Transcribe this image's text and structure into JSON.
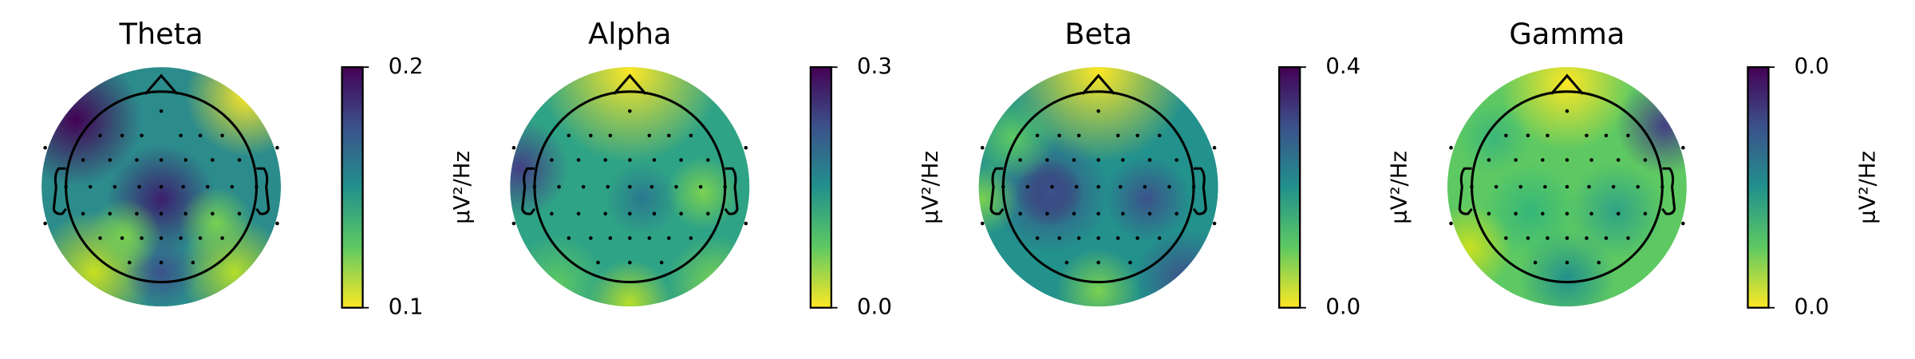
{
  "chart_data": [
    {
      "type": "topomap",
      "title": "Theta",
      "colorbar_label": "µV²/Hz",
      "clim": [
        0.1,
        0.2
      ],
      "cticks": [
        0.2,
        0.1
      ]
    },
    {
      "type": "topomap",
      "title": "Alpha",
      "colorbar_label": "µV²/Hz",
      "clim": [
        0,
        0.3
      ],
      "cticks": [
        0.3,
        {
          "value": 0,
          "label": "0.0"
        }
      ]
    },
    {
      "type": "topomap",
      "title": "Beta",
      "colorbar_label": "µV²/Hz",
      "clim": [
        0,
        0.4
      ],
      "cticks": [
        0.4,
        {
          "value": 0,
          "label": "0.0"
        }
      ]
    },
    {
      "type": "topomap",
      "title": "Gamma",
      "colorbar_label": "µV²/Hz",
      "clim": [
        0.01,
        0.04
      ],
      "cticks": [
        {
          "value": 0.04,
          "label": "0.0"
        },
        {
          "value": 0.01,
          "label": "0.0"
        }
      ]
    }
  ]
}
